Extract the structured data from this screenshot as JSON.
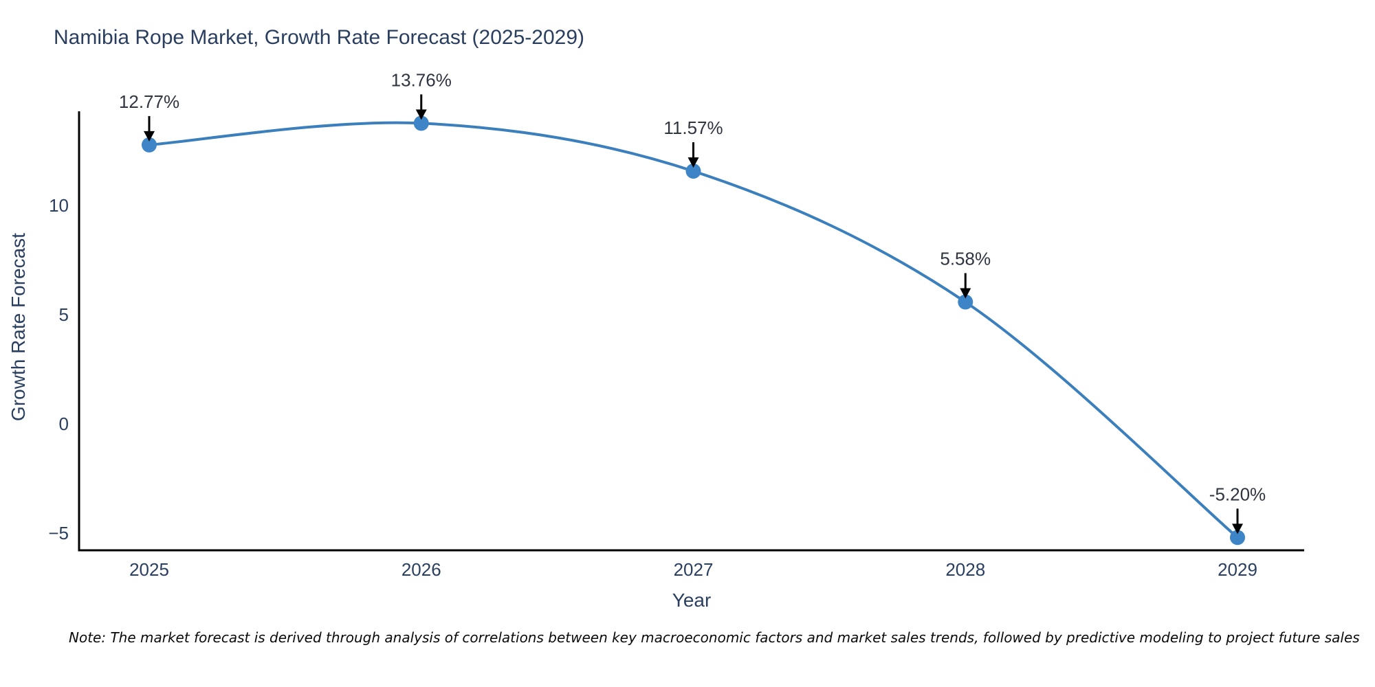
{
  "header": {
    "title": "Namibia Rope Market, Growth Rate Forecast (2025-2029)"
  },
  "note": {
    "text": "Note: The market forecast is derived through analysis of correlations between key macroeconomic factors and market sales trends, followed by predictive modeling to project future sales"
  },
  "chart_data": {
    "type": "line",
    "title": "Namibia Rope Market, Growth Rate Forecast (2025-2029)",
    "xlabel": "Year",
    "ylabel": "Growth Rate Forecast",
    "categories": [
      "2025",
      "2026",
      "2027",
      "2028",
      "2029"
    ],
    "x": [
      2025,
      2026,
      2027,
      2028,
      2029
    ],
    "values": [
      12.77,
      13.76,
      11.57,
      5.58,
      -5.2
    ],
    "point_labels": [
      "12.77%",
      "13.76%",
      "11.57%",
      "5.58%",
      "-5.20%"
    ],
    "ytick_values": [
      10,
      5,
      0,
      -5
    ],
    "ytick_labels": [
      "10",
      "5",
      "0",
      "−5"
    ],
    "ylim": [
      -5.75,
      14.3
    ],
    "grid": false,
    "legend_position": "none",
    "line_shape": "spline",
    "colors": {
      "line": "#3c7fbd",
      "marker": "#3d85c6",
      "axis": "#000000",
      "text": "#2a3f5f",
      "annotation_text": "#2e3440",
      "annotation_arrow": "#000000",
      "background": "#ffffff"
    }
  }
}
